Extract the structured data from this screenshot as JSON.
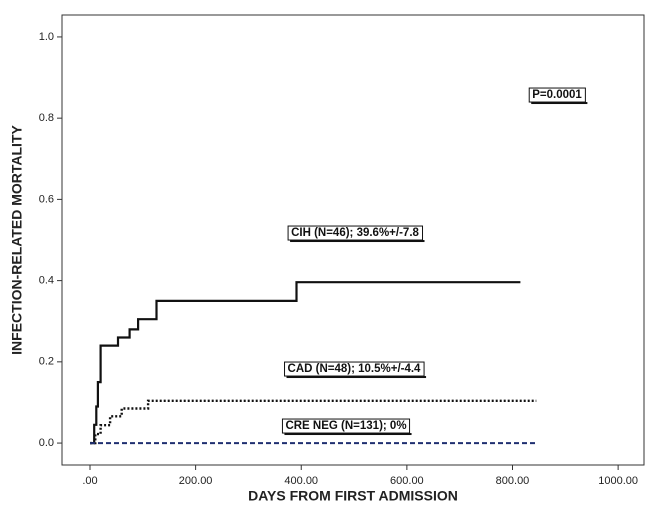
{
  "chart_data": {
    "type": "step-line",
    "x_label": "DAYS FROM FIRST ADMISSION",
    "y_label": "INFECTION-RELATED MORTALITY",
    "xlim": [
      -53,
      1049
    ],
    "ylim": [
      -0.054,
      1.054
    ],
    "xticks": [
      {
        "value": 0,
        "label": ".00"
      },
      {
        "value": 200,
        "label": "200.00"
      },
      {
        "value": 400,
        "label": "400.00"
      },
      {
        "value": 600,
        "label": "600.00"
      },
      {
        "value": 800,
        "label": "800.00"
      },
      {
        "value": 1000,
        "label": "1000.00"
      }
    ],
    "yticks": [
      {
        "value": 0,
        "label": "0.0"
      },
      0.2,
      0.4,
      0.6,
      0.8,
      {
        "value": 1,
        "label": "1.0"
      }
    ],
    "series": [
      {
        "name": "CIH",
        "color": "#111111",
        "x": [
          0,
          8,
          8,
          12,
          12,
          15,
          15,
          20,
          20,
          53,
          53,
          75,
          75,
          91,
          91,
          126,
          126,
          391,
          391,
          815
        ],
        "values": [
          0,
          0,
          0.045,
          0.045,
          0.09,
          0.09,
          0.15,
          0.15,
          0.24,
          0.24,
          0.26,
          0.26,
          0.28,
          0.28,
          0.305,
          0.305,
          0.35,
          0.35,
          0.396,
          0.396
        ]
      },
      {
        "name": "CAD",
        "color": "#111111",
        "x": [
          0,
          10,
          10,
          20,
          20,
          38,
          38,
          60,
          60,
          110,
          110,
          845
        ],
        "values": [
          0,
          0,
          0.022,
          0.022,
          0.044,
          0.044,
          0.066,
          0.066,
          0.085,
          0.085,
          0.104,
          0.104
        ]
      },
      {
        "name": "CRE NEG",
        "color": "#1f2f70",
        "x": [
          0,
          845
        ],
        "values": [
          0,
          0
        ]
      }
    ],
    "annotations": [
      "P=0.0001",
      "CIH (N=46); 39.6%+/-7.8",
      "CAD (N=48); 10.5%+/-4.4",
      "CRE NEG (N=131); 0%"
    ]
  }
}
